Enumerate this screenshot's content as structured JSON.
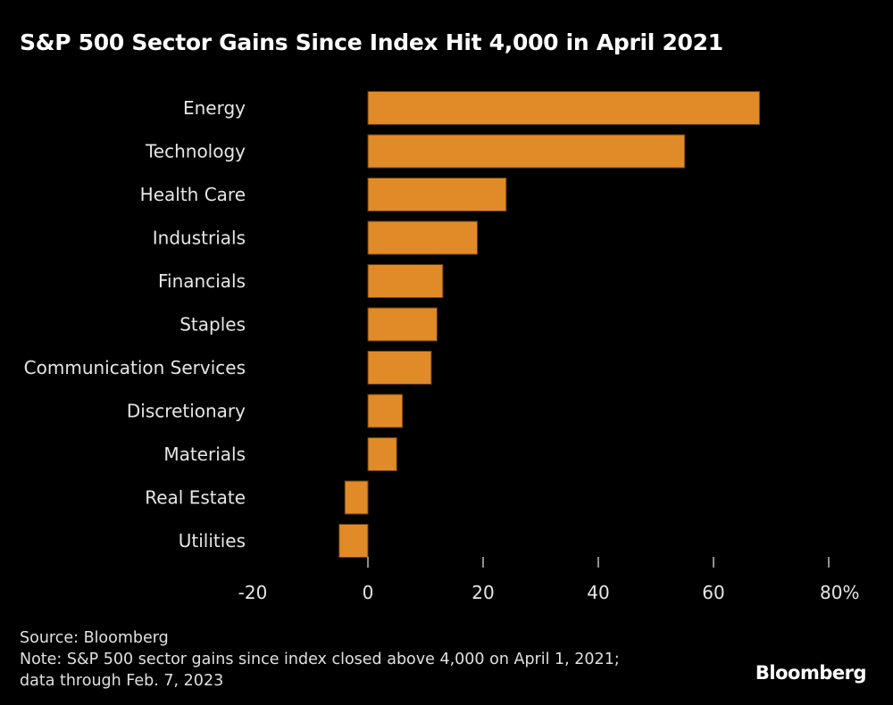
{
  "colors": {
    "background": "#000000",
    "bar": "#e08b27",
    "bar_edge": "#6b3f0d",
    "text": "#e6e6e6",
    "tick": "#bdbdbd"
  },
  "footer": {
    "source": "Source: Bloomberg",
    "note_line1": "Note: S&P 500 sector gains since index closed above 4,000 on April 1, 2021;",
    "note_line2": "data through Feb. 7, 2023"
  },
  "brand": "Bloomberg",
  "chart_data": {
    "type": "bar",
    "orientation": "horizontal",
    "title": "S&P 500 Sector Gains Since Index Hit 4,000 in April 2021",
    "xlabel": "",
    "ylabel": "",
    "categories": [
      "Energy",
      "Technology",
      "Health Care",
      "Industrials",
      "Financials",
      "Staples",
      "Communication Services",
      "Discretionary",
      "Materials",
      "Real Estate",
      "Utilities"
    ],
    "values": [
      68,
      55,
      24,
      19,
      13,
      12,
      11,
      6,
      5,
      -4,
      -5
    ],
    "xlim": [
      -20,
      80
    ],
    "xticks": [
      -20,
      0,
      20,
      40,
      60,
      80
    ],
    "xtick_labels": [
      "-20",
      "0",
      "20",
      "40",
      "60",
      "80%"
    ],
    "unit": "%",
    "grid": false,
    "legend": "none"
  }
}
